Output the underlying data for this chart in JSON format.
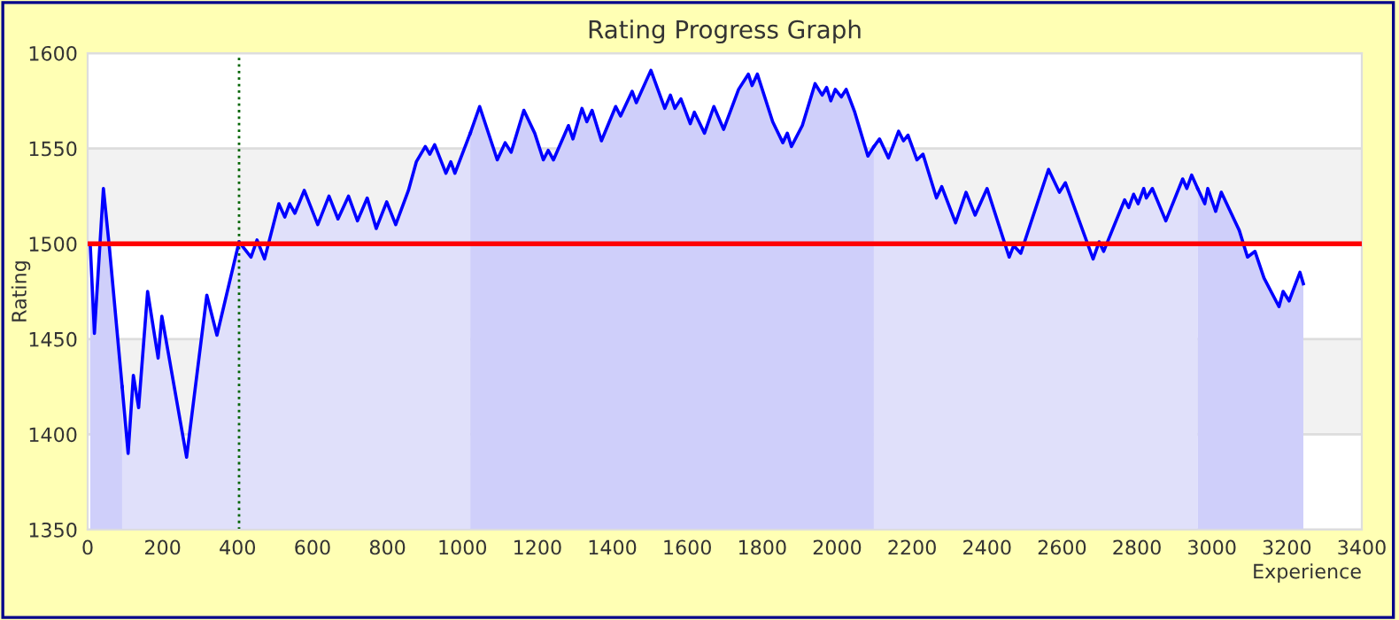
{
  "chart_data": {
    "type": "area",
    "title": "Rating Progress Graph",
    "xlabel": "Experience",
    "ylabel": "Rating",
    "color": "#0000ff",
    "xlim": [
      0,
      3400
    ],
    "xticks": [
      0,
      200,
      400,
      600,
      800,
      1000,
      1200,
      1400,
      1600,
      1800,
      2000,
      2200,
      2400,
      2600,
      2800,
      3000,
      3200,
      3400
    ],
    "ylim": [
      1350,
      1600
    ],
    "yticks": [
      1350,
      1400,
      1450,
      1500,
      1550,
      1600
    ],
    "grid": "y",
    "marker": "none",
    "line_style": "solid",
    "series": [
      {
        "color": "#cfcffa",
        "x": [
          7,
          18,
          42,
          58,
          92
        ],
        "values": [
          1499,
          1453,
          1529,
          1498,
          1425
        ]
      },
      {
        "color": "#e0e0fa",
        "x": [
          92,
          108,
          122,
          136,
          160,
          188,
          198,
          264,
          318,
          345,
          404,
          436,
          452,
          472,
          510,
          526,
          539,
          553,
          578,
          614,
          644,
          668,
          696,
          720,
          746,
          770,
          798,
          822,
          856,
          877,
          901,
          913,
          926,
          956,
          969,
          980,
          1015,
          1021
        ],
        "values": [
          1425,
          1390,
          1431,
          1414,
          1475,
          1440,
          1462,
          1388,
          1473,
          1452,
          1501,
          1493,
          1502,
          1492,
          1521,
          1514,
          1521,
          1516,
          1528,
          1510,
          1525,
          1513,
          1525,
          1512,
          1524,
          1508,
          1522,
          1510,
          1528,
          1543,
          1551,
          1547,
          1552,
          1537,
          1543,
          1537,
          1555,
          1558
        ]
      },
      {
        "color": "#cfcffa",
        "x": [
          1021,
          1046,
          1093,
          1114,
          1130,
          1164,
          1193,
          1216,
          1229,
          1243,
          1283,
          1295,
          1319,
          1332,
          1346,
          1371,
          1409,
          1422,
          1453,
          1464,
          1503,
          1540,
          1555,
          1567,
          1583,
          1608,
          1619,
          1646,
          1671,
          1697,
          1737,
          1763,
          1773,
          1787,
          1828,
          1855,
          1867,
          1878,
          1907,
          1941,
          1960,
          1972,
          1983,
          1995,
          2011,
          2024,
          2047,
          2082,
          2098
        ],
        "values": [
          1558,
          1572,
          1544,
          1553,
          1548,
          1570,
          1558,
          1544,
          1549,
          1544,
          1562,
          1555,
          1571,
          1564,
          1570,
          1554,
          1572,
          1567,
          1580,
          1574,
          1591,
          1571,
          1578,
          1571,
          1576,
          1563,
          1569,
          1558,
          1572,
          1560,
          1581,
          1589,
          1583,
          1589,
          1564,
          1553,
          1558,
          1551,
          1562,
          1584,
          1578,
          1582,
          1575,
          1581,
          1577,
          1581,
          1569,
          1546,
          1551
        ]
      },
      {
        "color": "#e0e0fa",
        "x": [
          2098,
          2113,
          2137,
          2164,
          2177,
          2189,
          2213,
          2229,
          2265,
          2279,
          2316,
          2344,
          2368,
          2400,
          2459,
          2471,
          2490,
          2564,
          2593,
          2609,
          2683,
          2699,
          2711,
          2767,
          2778,
          2791,
          2803,
          2818,
          2825,
          2841,
          2877,
          2922,
          2933,
          2946,
          2962
        ],
        "values": [
          1551,
          1555,
          1545,
          1559,
          1554,
          1557,
          1544,
          1547,
          1524,
          1530,
          1511,
          1527,
          1515,
          1529,
          1493,
          1499,
          1495,
          1539,
          1527,
          1532,
          1492,
          1501,
          1496,
          1523,
          1519,
          1526,
          1521,
          1529,
          1524,
          1529,
          1512,
          1534,
          1529,
          1536,
          1529
        ]
      },
      {
        "color": "#cfcffa",
        "x": [
          2962,
          2981,
          2989,
          3010,
          3025,
          3073,
          3095,
          3115,
          3139,
          3179,
          3190,
          3206,
          3235,
          3244
        ],
        "values": [
          1529,
          1521,
          1529,
          1517,
          1527,
          1507,
          1493,
          1496,
          1482,
          1467,
          1475,
          1470,
          1485,
          1479
        ]
      }
    ],
    "bands": [
      {
        "axis": "y",
        "from": 1400,
        "to": 1450,
        "color": "#f2f2f2"
      },
      {
        "axis": "y",
        "from": 1500,
        "to": 1550,
        "color": "#f2f2f2"
      }
    ],
    "ref_lines": [
      {
        "axis": "y",
        "value": 1500,
        "color": "#ff0000",
        "line_style": "solid"
      },
      {
        "axis": "x",
        "value": 404,
        "color": "#006400",
        "line_style": "dotted"
      }
    ]
  }
}
